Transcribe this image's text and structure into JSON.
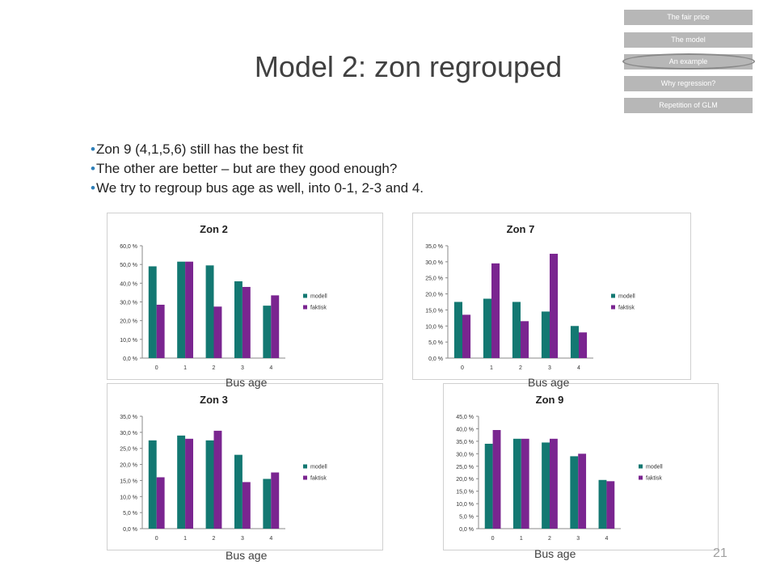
{
  "slide": {
    "title": "Model 2: zon regrouped",
    "page_number": "21",
    "bullets": [
      "Zon 9 (4,1,5,6) still has the best fit",
      "The other are better – but are they good enough?",
      "We try to regroup bus age as well, into 0-1, 2-3 and 4."
    ],
    "x_axis_caption": "Bus age"
  },
  "nav": {
    "items": [
      "The fair price",
      "The model",
      "An example",
      "Why regression?",
      "Repetition of GLM"
    ],
    "active_index": 2
  },
  "colors": {
    "modell": "#137872",
    "faktisk": "#7a2590"
  },
  "chart_data": [
    {
      "type": "bar",
      "title": "Zon 2",
      "categories": [
        "0",
        "1",
        "2",
        "3",
        "4"
      ],
      "series": [
        {
          "name": "modell",
          "values": [
            49,
            51.5,
            49.5,
            41,
            28
          ]
        },
        {
          "name": "faktisk",
          "values": [
            28.5,
            51.5,
            27.5,
            38,
            33.5
          ]
        }
      ],
      "ylim": [
        0,
        60
      ],
      "yticks": [
        "0,0 %",
        "10,0 %",
        "20,0 %",
        "30,0 %",
        "40,0 %",
        "50,0 %",
        "60,0 %"
      ],
      "xlabel": "Bus age",
      "legend": "right"
    },
    {
      "type": "bar",
      "title": "Zon 7",
      "categories": [
        "0",
        "1",
        "2",
        "3",
        "4"
      ],
      "series": [
        {
          "name": "modell",
          "values": [
            17.5,
            18.5,
            17.5,
            14.5,
            10
          ]
        },
        {
          "name": "faktisk",
          "values": [
            13.5,
            29.5,
            11.5,
            32.5,
            8
          ]
        }
      ],
      "ylim": [
        0,
        35
      ],
      "yticks": [
        "0,0 %",
        "5,0 %",
        "10,0 %",
        "15,0 %",
        "20,0 %",
        "25,0 %",
        "30,0 %",
        "35,0 %"
      ],
      "xlabel": "Bus age",
      "legend": "right"
    },
    {
      "type": "bar",
      "title": "Zon 3",
      "categories": [
        "0",
        "1",
        "2",
        "3",
        "4"
      ],
      "series": [
        {
          "name": "modell",
          "values": [
            27.5,
            29,
            27.5,
            23,
            15.5
          ]
        },
        {
          "name": "faktisk",
          "values": [
            16,
            28,
            30.5,
            14.5,
            17.5
          ]
        }
      ],
      "ylim": [
        0,
        35
      ],
      "yticks": [
        "0,0 %",
        "5,0 %",
        "10,0 %",
        "15,0 %",
        "20,0 %",
        "25,0 %",
        "30,0 %",
        "35,0 %"
      ],
      "xlabel": "Bus age",
      "legend": "right"
    },
    {
      "type": "bar",
      "title": "Zon 9",
      "categories": [
        "0",
        "1",
        "2",
        "3",
        "4"
      ],
      "series": [
        {
          "name": "modell",
          "values": [
            34,
            36,
            34.5,
            29,
            19.5
          ]
        },
        {
          "name": "faktisk",
          "values": [
            39.5,
            36,
            36,
            30,
            19
          ]
        }
      ],
      "ylim": [
        0,
        45
      ],
      "yticks": [
        "0,0 %",
        "5,0 %",
        "10,0 %",
        "15,0 %",
        "20,0 %",
        "25,0 %",
        "30,0 %",
        "35,0 %",
        "40,0 %",
        "45,0 %"
      ],
      "xlabel": "Bus age",
      "legend": "right"
    }
  ]
}
